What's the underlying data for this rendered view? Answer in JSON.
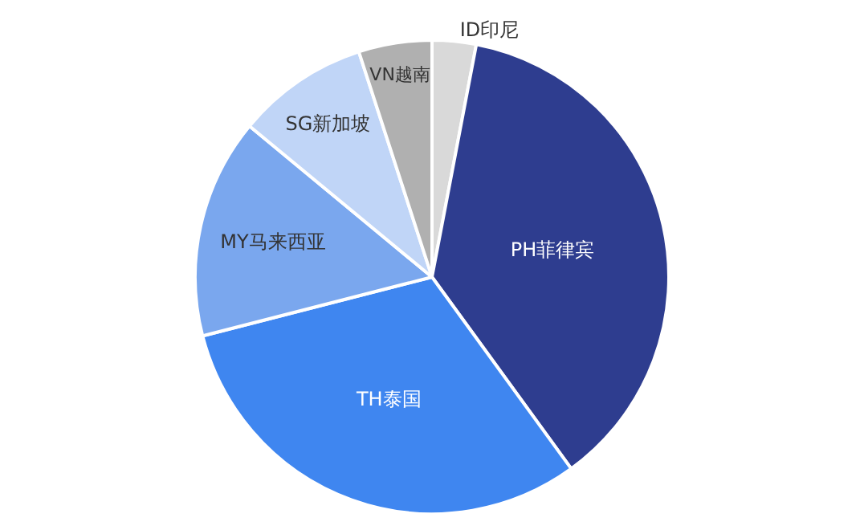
{
  "chart_data": {
    "type": "pie",
    "categories": [
      "ID印尼",
      "PH菲律宾",
      "TH泰国",
      "MY马来西亚",
      "SG新加坡",
      "VN越南"
    ],
    "values": [
      3,
      37,
      31,
      15,
      9,
      5
    ],
    "colors": [
      "#d9d9d9",
      "#2e3d8f",
      "#3f86f0",
      "#7aa7ee",
      "#c0d5f7",
      "#b0b0b0"
    ],
    "legend": false
  }
}
